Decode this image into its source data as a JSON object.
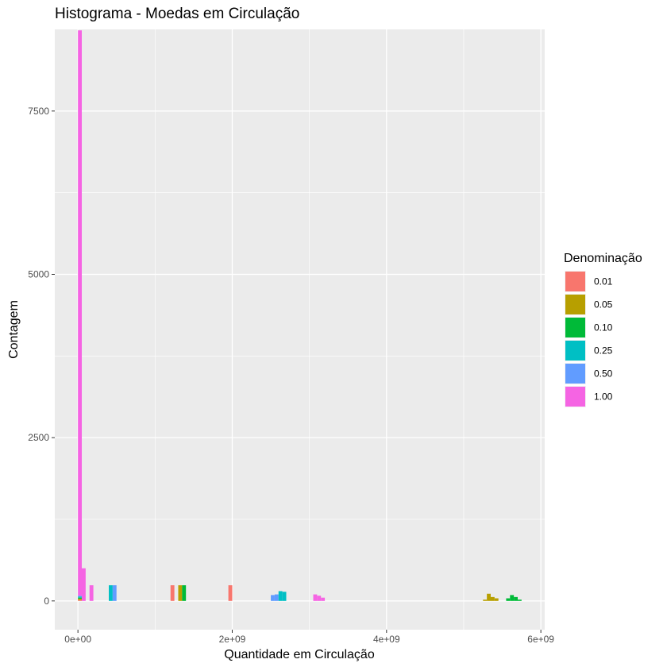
{
  "chart_data": {
    "type": "bar",
    "title": "Histograma - Moedas em Circulação",
    "xlabel": "Quantidade em Circulação",
    "ylabel": "Contagem",
    "xlim": [
      -300000000.0,
      6050000000.0
    ],
    "ylim": [
      -440,
      8750
    ],
    "x_ticks": [
      {
        "value": 0,
        "label": "0e+00"
      },
      {
        "value": 2000000000.0,
        "label": "2e+09"
      },
      {
        "value": 4000000000.0,
        "label": "4e+09"
      },
      {
        "value": 6000000000.0,
        "label": "6e+09"
      }
    ],
    "y_ticks": [
      {
        "value": 0,
        "label": "0"
      },
      {
        "value": 2500,
        "label": "2500"
      },
      {
        "value": 5000,
        "label": "5000"
      },
      {
        "value": 7500,
        "label": "7500"
      }
    ],
    "grid": true,
    "stacked": true,
    "bin_width": 50000000.0,
    "legend": {
      "title": "Denominação",
      "position": "right",
      "entries": [
        {
          "label": "0.01",
          "color": "#F8766D"
        },
        {
          "label": "0.05",
          "color": "#B79F00"
        },
        {
          "label": "0.10",
          "color": "#00BA38"
        },
        {
          "label": "0.25",
          "color": "#00BFC4"
        },
        {
          "label": "0.50",
          "color": "#619CFF"
        },
        {
          "label": "1.00",
          "color": "#F564E3"
        }
      ]
    },
    "bins": [
      {
        "x": 0.0,
        "counts": [
          15,
          20,
          15,
          15,
          15,
          8655
        ]
      },
      {
        "x": 50000000.0,
        "counts": [
          0,
          0,
          0,
          0,
          0,
          500
        ]
      },
      {
        "x": 150000000.0,
        "counts": [
          0,
          0,
          0,
          0,
          0,
          240
        ]
      },
      {
        "x": 400000000.0,
        "counts": [
          0,
          0,
          0,
          240,
          0,
          0
        ]
      },
      {
        "x": 450000000.0,
        "counts": [
          0,
          0,
          0,
          0,
          240,
          0
        ]
      },
      {
        "x": 1200000000.0,
        "counts": [
          240,
          0,
          0,
          0,
          0,
          0
        ]
      },
      {
        "x": 1300000000.0,
        "counts": [
          0,
          240,
          0,
          0,
          0,
          0
        ]
      },
      {
        "x": 1350000000.0,
        "counts": [
          0,
          0,
          240,
          0,
          0,
          0
        ]
      },
      {
        "x": 1950000000.0,
        "counts": [
          240,
          0,
          0,
          0,
          0,
          0
        ]
      },
      {
        "x": 2500000000.0,
        "counts": [
          0,
          0,
          0,
          0,
          90,
          0
        ]
      },
      {
        "x": 2550000000.0,
        "counts": [
          0,
          0,
          0,
          0,
          100,
          0
        ]
      },
      {
        "x": 2600000000.0,
        "counts": [
          0,
          0,
          0,
          150,
          0,
          0
        ]
      },
      {
        "x": 2650000000.0,
        "counts": [
          0,
          0,
          0,
          140,
          0,
          0
        ]
      },
      {
        "x": 3050000000.0,
        "counts": [
          0,
          0,
          0,
          0,
          0,
          100
        ]
      },
      {
        "x": 3100000000.0,
        "counts": [
          0,
          0,
          0,
          0,
          0,
          80
        ]
      },
      {
        "x": 3150000000.0,
        "counts": [
          0,
          0,
          0,
          0,
          0,
          50
        ]
      },
      {
        "x": 5250000000.0,
        "counts": [
          0,
          20,
          0,
          0,
          0,
          0
        ]
      },
      {
        "x": 5300000000.0,
        "counts": [
          0,
          110,
          0,
          0,
          0,
          0
        ]
      },
      {
        "x": 5350000000.0,
        "counts": [
          0,
          60,
          0,
          0,
          0,
          0
        ]
      },
      {
        "x": 5400000000.0,
        "counts": [
          0,
          40,
          0,
          0,
          0,
          0
        ]
      },
      {
        "x": 5550000000.0,
        "counts": [
          0,
          0,
          40,
          0,
          0,
          0
        ]
      },
      {
        "x": 5600000000.0,
        "counts": [
          0,
          0,
          90,
          0,
          0,
          0
        ]
      },
      {
        "x": 5650000000.0,
        "counts": [
          0,
          0,
          60,
          0,
          0,
          0
        ]
      },
      {
        "x": 5700000000.0,
        "counts": [
          0,
          0,
          20,
          0,
          0,
          0
        ]
      }
    ]
  }
}
